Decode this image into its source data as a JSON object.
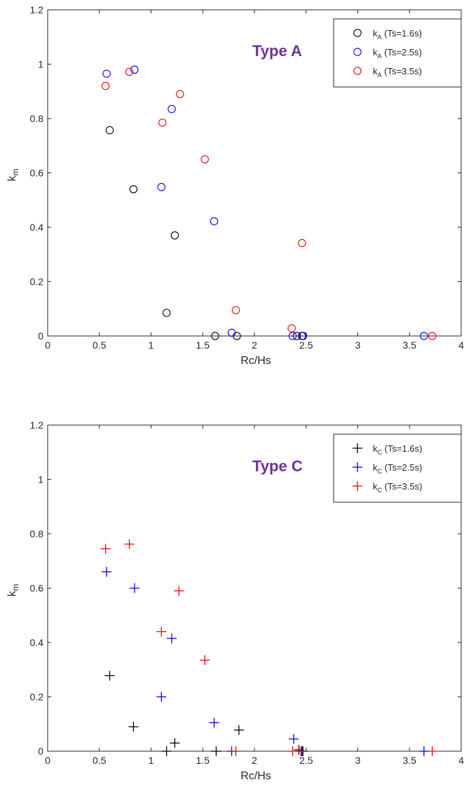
{
  "chart_data": [
    {
      "type": "scatter",
      "title": "",
      "annotation": "Type A",
      "annotation_color": "#7030A0",
      "xlabel": "Rc/Hs",
      "ylabel_main": "k",
      "ylabel_sub": "m",
      "xlim": [
        0,
        4
      ],
      "ylim": [
        0,
        1.2
      ],
      "xticks": [
        0,
        0.5,
        1,
        1.5,
        2,
        2.5,
        3,
        3.5,
        4
      ],
      "xtick_labels": [
        "0",
        "0.5",
        "1",
        "1.5",
        "2",
        "2.5",
        "3",
        "3.5",
        "4"
      ],
      "yticks": [
        0,
        0.2,
        0.4,
        0.6,
        0.8,
        1,
        1.2
      ],
      "ytick_labels": [
        "0",
        "0.2",
        "0.4",
        "0.6",
        "0.8",
        "1",
        "1.2"
      ],
      "grid": false,
      "legend_position": "top-right",
      "marker": "circle",
      "series": [
        {
          "name_main": "k",
          "name_sub": "A",
          "name_rest": " (Ts=1.6s)",
          "color": "#000000",
          "x": [
            0.6,
            0.83,
            1.15,
            1.23,
            1.62,
            1.83,
            2.41,
            2.46
          ],
          "y": [
            0.757,
            0.54,
            0.085,
            0.37,
            0.0,
            0.0,
            0.0,
            0.0
          ]
        },
        {
          "name_main": "k",
          "name_sub": "A",
          "name_rest": " (Ts=2.5s)",
          "color": "#0000FF",
          "x": [
            0.57,
            0.84,
            1.1,
            1.2,
            1.61,
            1.78,
            2.37,
            2.47,
            3.64
          ],
          "y": [
            0.965,
            0.98,
            0.548,
            0.835,
            0.422,
            0.012,
            0.0,
            0.0,
            0.0
          ]
        },
        {
          "name_main": "k",
          "name_sub": "A",
          "name_rest": " (Ts=3.5s)",
          "color": "#FF0000",
          "x": [
            0.56,
            0.79,
            1.11,
            1.28,
            1.52,
            1.82,
            2.36,
            2.46,
            3.72
          ],
          "y": [
            0.92,
            0.972,
            0.785,
            0.89,
            0.65,
            0.095,
            0.028,
            0.342,
            0.0
          ]
        }
      ]
    },
    {
      "type": "scatter",
      "title": "",
      "annotation": "Type C",
      "annotation_color": "#7030A0",
      "xlabel": "Rc/Hs",
      "ylabel_main": "k",
      "ylabel_sub": "m",
      "xlim": [
        0,
        4
      ],
      "ylim": [
        0,
        1.2
      ],
      "xticks": [
        0,
        0.5,
        1,
        1.5,
        2,
        2.5,
        3,
        3.5,
        4
      ],
      "xtick_labels": [
        "0",
        "0.5",
        "1",
        "1.5",
        "2",
        "2.5",
        "3",
        "3.5",
        "4"
      ],
      "yticks": [
        0,
        0.2,
        0.4,
        0.6,
        0.8,
        1,
        1.2
      ],
      "ytick_labels": [
        "0",
        "0.2",
        "0.4",
        "0.6",
        "0.8",
        "1",
        "1.2"
      ],
      "grid": false,
      "legend_position": "top-right",
      "marker": "plus",
      "series": [
        {
          "name_main": "k",
          "name_sub": "C",
          "name_rest": " (Ts=1.6s)",
          "color": "#000000",
          "x": [
            0.6,
            0.83,
            1.15,
            1.23,
            1.63,
            1.85,
            2.43,
            2.46
          ],
          "y": [
            0.278,
            0.09,
            0.0,
            0.03,
            0.0,
            0.078,
            0.005,
            0.0
          ]
        },
        {
          "name_main": "k",
          "name_sub": "C",
          "name_rest": " (Ts=2.5s)",
          "color": "#0000FF",
          "x": [
            0.57,
            0.84,
            1.1,
            1.2,
            1.61,
            1.78,
            2.38,
            2.47,
            3.64
          ],
          "y": [
            0.66,
            0.6,
            0.2,
            0.415,
            0.105,
            0.0,
            0.045,
            0.0,
            0.0
          ]
        },
        {
          "name_main": "k",
          "name_sub": "C",
          "name_rest": " (Ts=3.5s)",
          "color": "#FF0000",
          "x": [
            0.56,
            0.79,
            1.1,
            1.27,
            1.52,
            1.82,
            2.37,
            2.45,
            3.72
          ],
          "y": [
            0.745,
            0.762,
            0.44,
            0.59,
            0.335,
            0.0,
            0.0,
            0.0,
            0.0
          ]
        }
      ]
    }
  ]
}
